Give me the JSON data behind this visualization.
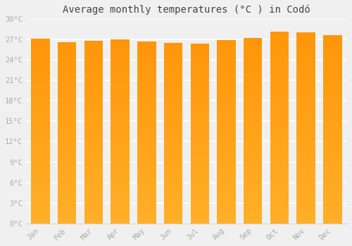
{
  "title": "Average monthly temperatures (°C ) in Codó",
  "months": [
    "Jan",
    "Feb",
    "Mar",
    "Apr",
    "May",
    "Jun",
    "Jul",
    "Aug",
    "Sep",
    "Oct",
    "Nov",
    "Dec"
  ],
  "temperatures": [
    27.1,
    26.6,
    26.8,
    27.0,
    26.7,
    26.5,
    26.4,
    26.9,
    27.2,
    28.1,
    28.0,
    27.6
  ],
  "ylim": [
    0,
    30
  ],
  "yticks": [
    0,
    3,
    6,
    9,
    12,
    15,
    18,
    21,
    24,
    27,
    30
  ],
  "ytick_labels": [
    "0°C",
    "3°C",
    "6°C",
    "9°C",
    "12°C",
    "15°C",
    "18°C",
    "21°C",
    "24°C",
    "27°C",
    "30°C"
  ],
  "bg_color": "#f0f0f0",
  "grid_color": "#ffffff",
  "bar_color": "#FFA500",
  "bar_color_left": "#FFB733",
  "bar_color_right": "#FF9500",
  "title_fontsize": 10,
  "tick_fontsize": 7.5,
  "tick_color": "#aaaaaa",
  "title_color": "#444444"
}
